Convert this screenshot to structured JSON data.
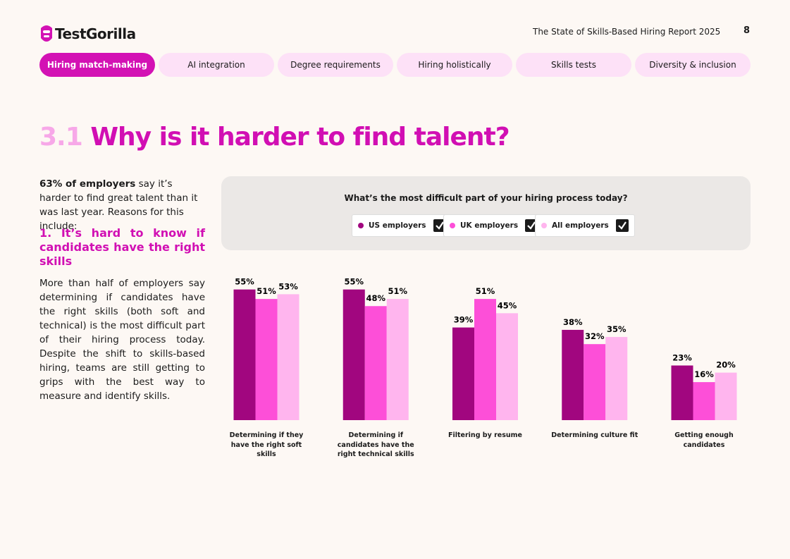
{
  "header": {
    "logo": "TestGorilla",
    "report": "The State of Skills-Based Hiring Report 2025",
    "page": 8
  },
  "tabs": [
    "Hiring match-making",
    "AI integration",
    "Degree requirements",
    "Hiring holistically",
    "Skills tests",
    "Diversity & inclusion"
  ],
  "section": {
    "number": "3.1",
    "title": "Why is it harder to find talent?"
  },
  "intro": {
    "bold": "63% of employers",
    "text": " say it’s harder to find great talent than it was last year. Reasons for this include:"
  },
  "subheading": "1. It’s hard to know if candidates have the right skills",
  "body": "More than half of employers say determining if candidates have the right skills (both soft and technical) is the most difficult part of their hiring process today. Despite the shift to skills-based hiring, teams are still getting to grips with the best way to measure and identify skills.",
  "chart_data": {
    "type": "bar",
    "title": "What’s the most difficult part of your hiring process today?",
    "categories": [
      "Determining if they have the right soft skills",
      "Determining if candidates have the right technical skills",
      "Filtering by resume",
      "Determining culture fit",
      "Getting enough candidates"
    ],
    "series": [
      {
        "name": "US employers",
        "color": "#a1067f",
        "values": [
          55,
          55,
          39,
          38,
          23
        ],
        "value_labels": [
          "55%",
          "55%",
          "39%",
          "38%",
          "23%"
        ]
      },
      {
        "name": "UK employers",
        "color": "#fd4fd8",
        "values": [
          51,
          48,
          51,
          32,
          16
        ],
        "value_labels": [
          "51%",
          "48%",
          "51%",
          "32%",
          "16%"
        ]
      },
      {
        "name": "All employers",
        "color": "#ffb5ee",
        "values": [
          53,
          51,
          45,
          35,
          20
        ],
        "value_labels": [
          "53%",
          "51%",
          "45%",
          "35%",
          "20%"
        ]
      }
    ]
  }
}
